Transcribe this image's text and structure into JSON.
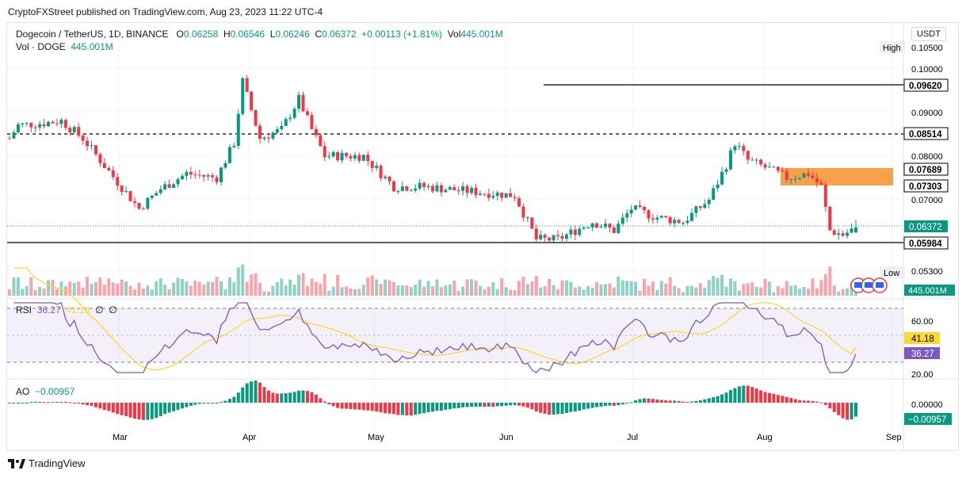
{
  "header": "CryptoFXStreet published on TradingView.com, Aug 23, 2023 11:22 UTC-4",
  "symbol": {
    "name": "Dogecoin / TetherUS, 1D, BINANCE",
    "o_label": "O",
    "o": "0.06258",
    "h_label": "H",
    "h": "0.06546",
    "l_label": "L",
    "l": "0.06246",
    "c_label": "C",
    "c": "0.06372",
    "change": "+0.00113 (+1.81%)",
    "vol_label": "Vol",
    "vol": "445.001M",
    "vol_doge_label": "Vol · DOGE",
    "vol_doge": "445.001M"
  },
  "currency": "USDT",
  "high_tag": "High",
  "low_tag": "Low",
  "price_axis": [
    "0.10500",
    "0.10000",
    "0.09000",
    "0.08000",
    "0.07000",
    "0.05300"
  ],
  "level_labels": [
    "0.09620",
    "0.08514",
    "0.07689",
    "0.07303",
    "0.06372",
    "0.05984"
  ],
  "volume_label": "445.001M",
  "rsi": {
    "label": "RSI",
    "v1": "36.27",
    "v2": "41.18",
    "v3": "∅",
    "v4": "∅",
    "axis": [
      "60.00",
      "20.00"
    ],
    "badge_ma": "41.18",
    "badge_rsi": "36.27"
  },
  "ao": {
    "label": "AO",
    "value": "−0.00957",
    "axis": [
      "0.00000"
    ],
    "badge": "−0.00957"
  },
  "time_axis": [
    "Mar",
    "Apr",
    "May",
    "Jun",
    "Jul",
    "Aug",
    "Sep"
  ],
  "footer": "TradingView",
  "colors": {
    "up": "#089981",
    "down": "#f23645",
    "rsi": "#7e57c2",
    "rsi_ma": "#fdd835",
    "zone": "#f7a14d"
  },
  "chart_data": {
    "type": "candlestick",
    "title": "Dogecoin / TetherUS, 1D, BINANCE",
    "x_range": [
      "2023-02-08",
      "2023-08-23"
    ],
    "ylim": [
      0.053,
      0.105
    ],
    "key_levels": [
      0.0962,
      0.08514,
      0.07689,
      0.07303,
      0.05984
    ],
    "supply_zone": [
      0.07303,
      0.07689
    ],
    "last": {
      "open": 0.06258,
      "high": 0.06546,
      "low": 0.06246,
      "close": 0.06372,
      "volume": "445.001M"
    },
    "path_close": [
      {
        "date": "2023-02-08",
        "close": 0.084
      },
      {
        "date": "2023-02-10",
        "close": 0.087
      },
      {
        "date": "2023-02-16",
        "close": 0.0875
      },
      {
        "date": "2023-02-20",
        "close": 0.088
      },
      {
        "date": "2023-02-25",
        "close": 0.084
      },
      {
        "date": "2023-03-03",
        "close": 0.0765
      },
      {
        "date": "2023-03-10",
        "close": 0.068
      },
      {
        "date": "2023-03-15",
        "close": 0.0725
      },
      {
        "date": "2023-03-21",
        "close": 0.076
      },
      {
        "date": "2023-03-28",
        "close": 0.075
      },
      {
        "date": "2023-04-01",
        "close": 0.083
      },
      {
        "date": "2023-04-03",
        "close": 0.097
      },
      {
        "date": "2023-04-07",
        "close": 0.084
      },
      {
        "date": "2023-04-12",
        "close": 0.086
      },
      {
        "date": "2023-04-16",
        "close": 0.093
      },
      {
        "date": "2023-04-19",
        "close": 0.086
      },
      {
        "date": "2023-04-22",
        "close": 0.08
      },
      {
        "date": "2023-05-01",
        "close": 0.08
      },
      {
        "date": "2023-05-08",
        "close": 0.073
      },
      {
        "date": "2023-05-15",
        "close": 0.073
      },
      {
        "date": "2023-05-25",
        "close": 0.072
      },
      {
        "date": "2023-06-05",
        "close": 0.071
      },
      {
        "date": "2023-06-10",
        "close": 0.061
      },
      {
        "date": "2023-06-15",
        "close": 0.061
      },
      {
        "date": "2023-06-23",
        "close": 0.065
      },
      {
        "date": "2023-06-28",
        "close": 0.063
      },
      {
        "date": "2023-07-02",
        "close": 0.068
      },
      {
        "date": "2023-07-08",
        "close": 0.066
      },
      {
        "date": "2023-07-14",
        "close": 0.065
      },
      {
        "date": "2023-07-20",
        "close": 0.07
      },
      {
        "date": "2023-07-24",
        "close": 0.078
      },
      {
        "date": "2023-07-26",
        "close": 0.083
      },
      {
        "date": "2023-07-29",
        "close": 0.079
      },
      {
        "date": "2023-08-03",
        "close": 0.077
      },
      {
        "date": "2023-08-07",
        "close": 0.075
      },
      {
        "date": "2023-08-12",
        "close": 0.076
      },
      {
        "date": "2023-08-15",
        "close": 0.073
      },
      {
        "date": "2023-08-17",
        "close": 0.063
      },
      {
        "date": "2023-08-20",
        "close": 0.062
      },
      {
        "date": "2023-08-23",
        "close": 0.0637
      }
    ],
    "rsi_range": [
      20,
      80
    ],
    "rsi_levels": [
      70,
      50,
      30
    ],
    "rsi_last": 36.27,
    "rsi_ma_last": 41.18,
    "ao_last": -0.00957
  }
}
